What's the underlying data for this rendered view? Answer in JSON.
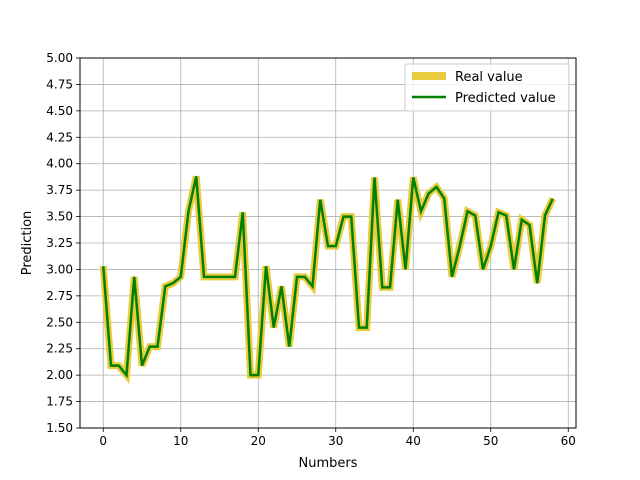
{
  "chart_data": {
    "type": "line",
    "xlabel": "Numbers",
    "ylabel": "Prediction",
    "xlim": [
      -3,
      61
    ],
    "ylim": [
      1.5,
      5.0
    ],
    "x_ticks": [
      "0",
      "10",
      "20",
      "30",
      "40",
      "50",
      "60"
    ],
    "y_ticks": [
      "1.50",
      "1.75",
      "2.00",
      "2.25",
      "2.50",
      "2.75",
      "3.00",
      "3.25",
      "3.50",
      "3.75",
      "4.00",
      "4.25",
      "4.50",
      "4.75",
      "5.00"
    ],
    "grid": true,
    "legend_position": "top-right",
    "x": [
      0,
      1,
      2,
      3,
      4,
      5,
      6,
      7,
      8,
      9,
      10,
      11,
      12,
      13,
      14,
      15,
      16,
      17,
      18,
      19,
      20,
      21,
      22,
      23,
      24,
      25,
      26,
      27,
      28,
      29,
      30,
      31,
      32,
      33,
      34,
      35,
      36,
      37,
      38,
      39,
      40,
      41,
      42,
      43,
      44,
      45,
      46,
      47,
      48,
      49,
      50,
      51,
      52,
      53,
      54,
      55,
      56,
      57,
      58
    ],
    "series": [
      {
        "name": "Real value",
        "color": "#e8cc3e",
        "values": [
          3.03,
          2.09,
          2.09,
          2.0,
          2.93,
          2.09,
          2.27,
          2.27,
          2.84,
          2.87,
          2.93,
          3.55,
          3.88,
          2.93,
          2.93,
          2.93,
          2.93,
          2.93,
          3.54,
          2.0,
          2.0,
          3.03,
          2.45,
          2.84,
          2.27,
          2.93,
          2.93,
          2.84,
          3.66,
          3.22,
          3.22,
          3.5,
          3.5,
          2.45,
          2.45,
          3.87,
          2.83,
          2.83,
          3.66,
          3.0,
          3.87,
          3.55,
          3.72,
          3.78,
          3.67,
          2.93,
          3.22,
          3.55,
          3.51,
          3.0,
          3.22,
          3.54,
          3.51,
          3.0,
          3.47,
          3.42,
          2.87,
          3.51,
          3.67
        ]
      },
      {
        "name": "Predicted value",
        "color": "#008000",
        "values": [
          3.03,
          2.09,
          2.09,
          2.0,
          2.93,
          2.09,
          2.27,
          2.27,
          2.84,
          2.87,
          2.93,
          3.55,
          3.88,
          2.93,
          2.93,
          2.93,
          2.93,
          2.93,
          3.54,
          2.0,
          2.0,
          3.03,
          2.45,
          2.84,
          2.27,
          2.93,
          2.93,
          2.84,
          3.66,
          3.22,
          3.22,
          3.5,
          3.5,
          2.45,
          2.45,
          3.87,
          2.83,
          2.83,
          3.66,
          3.0,
          3.87,
          3.55,
          3.72,
          3.78,
          3.67,
          2.93,
          3.22,
          3.55,
          3.51,
          3.0,
          3.22,
          3.54,
          3.51,
          3.0,
          3.47,
          3.42,
          2.87,
          3.51,
          3.67
        ]
      }
    ]
  }
}
